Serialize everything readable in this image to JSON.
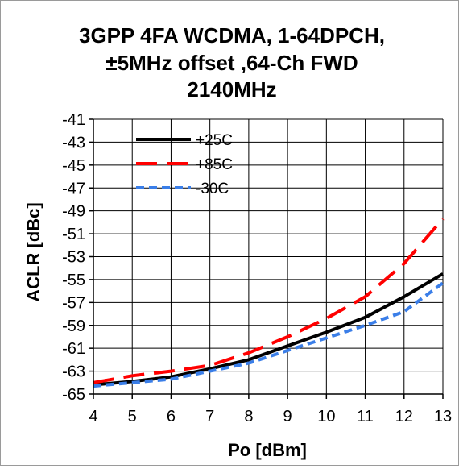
{
  "chart_data": {
    "type": "line",
    "title_lines": [
      "3GPP 4FA  WCDMA, 1-64DPCH,",
      "±5MHz offset ,64-Ch FWD",
      "2140MHz"
    ],
    "xlabel": "Po [dBm]",
    "ylabel": "ACLR [dBc]",
    "xlim": [
      4,
      13
    ],
    "ylim": [
      -65,
      -41
    ],
    "xticks": [
      "4",
      "5",
      "6",
      "7",
      "8",
      "9",
      "10",
      "11",
      "12",
      "13"
    ],
    "yticks": [
      "-41",
      "-43",
      "-45",
      "-47",
      "-49",
      "-51",
      "-53",
      "-55",
      "-57",
      "-59",
      "-61",
      "-63",
      "-65"
    ],
    "grid": true,
    "legend_position": "top-left",
    "series": [
      {
        "name": "+25C",
        "color": "#000000",
        "dash": "solid",
        "x": [
          4,
          5,
          6,
          7,
          8,
          9,
          10,
          11,
          12,
          13
        ],
        "y": [
          -64.2,
          -63.9,
          -63.5,
          -62.8,
          -62.0,
          -60.8,
          -59.6,
          -58.3,
          -56.5,
          -54.5
        ]
      },
      {
        "name": "+85C",
        "color": "#ff0000",
        "dash": "long-dash",
        "x": [
          4,
          5,
          6,
          7,
          8,
          9,
          10,
          11,
          12,
          13
        ],
        "y": [
          -64.0,
          -63.4,
          -63.0,
          -62.5,
          -61.4,
          -60.0,
          -58.4,
          -56.5,
          -53.6,
          -49.7
        ]
      },
      {
        "name": "-30C",
        "color": "#3a7ee8",
        "dash": "short-dash",
        "x": [
          4,
          5,
          6,
          7,
          8,
          9,
          10,
          11,
          12,
          13
        ],
        "y": [
          -64.3,
          -64.0,
          -63.7,
          -63.0,
          -62.3,
          -61.2,
          -60.1,
          -59.0,
          -57.8,
          -55.3
        ]
      }
    ]
  }
}
